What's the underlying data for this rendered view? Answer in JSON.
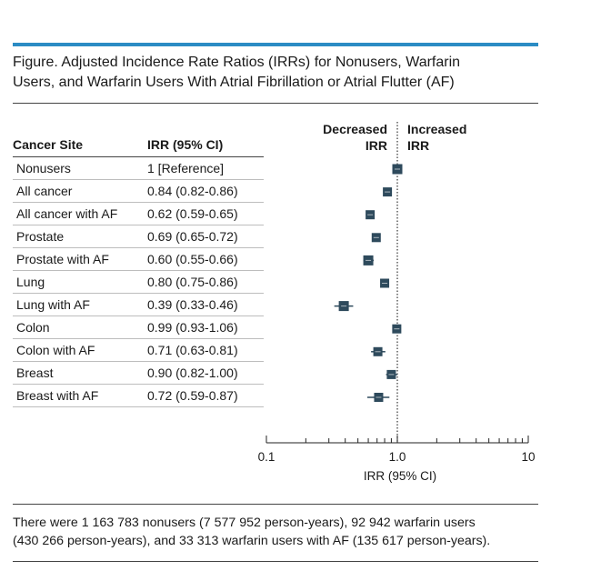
{
  "figure": {
    "title_line1": "Figure. Adjusted Incidence Rate Ratios (IRRs) for Nonusers, Warfarin",
    "title_line2": "Users, and Warfarin Users With Atrial Fibrillation or Atrial Flutter (AF)",
    "footnote_line1": "There were 1 163 783 nonusers (7 577 952 person-years), 92 942 warfarin users",
    "footnote_line2": "(430 266 person-years), and 33 313 warfarin users with AF (135 617 person-years).",
    "colors": {
      "accent_rule": "#2b8cc4",
      "marker": "#2e4a5c"
    }
  },
  "table": {
    "col_site": "Cancer Site",
    "col_irr": "IRR (95% CI)"
  },
  "direction": {
    "left_line1": "Decreased",
    "left_line2": "IRR",
    "right_line1": "Increased",
    "right_line2": "IRR"
  },
  "chart_data": {
    "type": "forest",
    "xlabel": "IRR (95% CI)",
    "x_scale": "log",
    "xlim": [
      0.1,
      10
    ],
    "reference_line": 1.0,
    "x_tick_labels": [
      "0.1",
      "1.0",
      "10"
    ],
    "rows": [
      {
        "site": "Nonusers",
        "irr_text": "1 [Reference]",
        "irr": 1.0,
        "lo": 1.0,
        "hi": 1.0
      },
      {
        "site": "All cancer",
        "irr_text": "0.84 (0.82-0.86)",
        "irr": 0.84,
        "lo": 0.82,
        "hi": 0.86
      },
      {
        "site": "All cancer with AF",
        "irr_text": "0.62 (0.59-0.65)",
        "irr": 0.62,
        "lo": 0.59,
        "hi": 0.65
      },
      {
        "site": "Prostate",
        "irr_text": "0.69 (0.65-0.72)",
        "irr": 0.69,
        "lo": 0.65,
        "hi": 0.72
      },
      {
        "site": "Prostate with AF",
        "irr_text": "0.60 (0.55-0.66)",
        "irr": 0.6,
        "lo": 0.55,
        "hi": 0.66
      },
      {
        "site": "Lung",
        "irr_text": "0.80 (0.75-0.86)",
        "irr": 0.8,
        "lo": 0.75,
        "hi": 0.86
      },
      {
        "site": "Lung with AF",
        "irr_text": "0.39 (0.33-0.46)",
        "irr": 0.39,
        "lo": 0.33,
        "hi": 0.46
      },
      {
        "site": "Colon",
        "irr_text": "0.99 (0.93-1.06)",
        "irr": 0.99,
        "lo": 0.93,
        "hi": 1.06
      },
      {
        "site": "Colon with AF",
        "irr_text": "0.71 (0.63-0.81)",
        "irr": 0.71,
        "lo": 0.63,
        "hi": 0.81
      },
      {
        "site": "Breast",
        "irr_text": "0.90 (0.82-1.00)",
        "irr": 0.9,
        "lo": 0.82,
        "hi": 1.0
      },
      {
        "site": "Breast with AF",
        "irr_text": "0.72 (0.59-0.87)",
        "irr": 0.72,
        "lo": 0.59,
        "hi": 0.87
      }
    ]
  }
}
